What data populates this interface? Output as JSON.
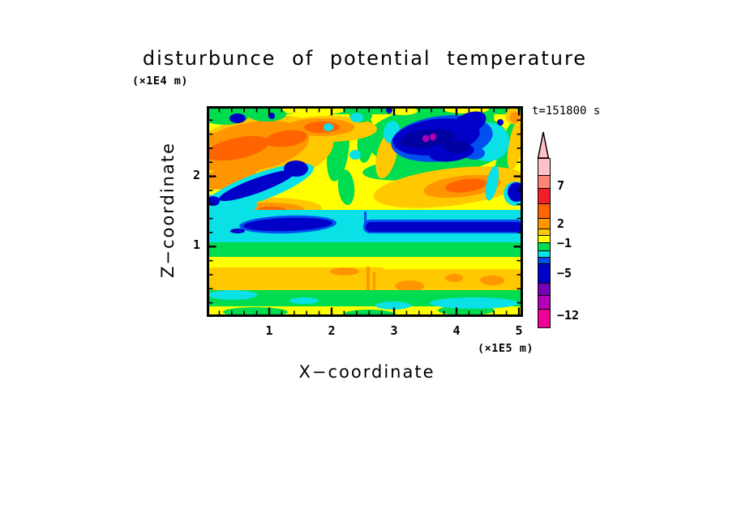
{
  "chart_data": {
    "type": "heatmap",
    "title": "disturbunce of potential temperature",
    "time_annotation": "t=151800 s",
    "xlabel": "X−coordinate",
    "x_units": "(×1E5 m)",
    "x_ticks": [
      1,
      2,
      3,
      4,
      5
    ],
    "xlim": [
      0,
      5.05
    ],
    "x_minor_step": 0.2,
    "ylabel": "Z−coordinate",
    "y_units": "(×1E4 m)",
    "y_ticks": [
      1,
      2
    ],
    "ylim": [
      0,
      3.0
    ],
    "y_minor_step": 0.2,
    "grid": false,
    "legend_position": "right",
    "palette": {
      "pale_pink": "#FFC0C8",
      "salmon": "#FF8478",
      "red": "#F51E28",
      "orange_dark": "#FF6400",
      "orange": "#FF9600",
      "gold": "#FFC800",
      "yellow": "#FFFF00",
      "green": "#00DC50",
      "cyan": "#0AE1E6",
      "blue": "#0050F0",
      "navy": "#0000C8",
      "navy_dark": "#0000A0",
      "purple": "#7800B4",
      "magenta_purple": "#B400B4",
      "magenta": "#F00096",
      "frame": "#000000"
    },
    "colorbar": {
      "arrow": "up",
      "labeled_levels": [
        7,
        2,
        -1,
        -5,
        -12
      ],
      "cells_top_to_bottom": [
        {
          "color": "pale_pink",
          "h": 20
        },
        {
          "color": "salmon",
          "h": 15,
          "label": "7"
        },
        {
          "color": "red",
          "h": 18
        },
        {
          "color": "orange_dark",
          "h": 17
        },
        {
          "color": "orange",
          "h": 12,
          "label": "2"
        },
        {
          "color": "gold",
          "h": 7
        },
        {
          "color": "yellow",
          "h": 8
        },
        {
          "color": "green",
          "h": 9,
          "label": "−1"
        },
        {
          "color": "cyan",
          "h": 7
        },
        {
          "color": "blue",
          "h": 7
        },
        {
          "color": "navy",
          "h": 23,
          "label": "−5"
        },
        {
          "color": "purple",
          "h": 14
        },
        {
          "color": "magenta_purple",
          "h": 16
        },
        {
          "color": "magenta",
          "h": 22,
          "label": "−12"
        }
      ]
    },
    "features": [
      {
        "desc": "strong negative anomaly (navy, < -5) blob with two small magenta spots",
        "x_1e5m": [
          2.9,
          4.5
        ],
        "z_1e4m": [
          2.35,
          2.95
        ]
      },
      {
        "desc": "diagonal navy streak with cyan halo",
        "x_1e5m": [
          0.2,
          1.5
        ],
        "z_1e4m": [
          1.85,
          2.25
        ]
      },
      {
        "desc": "thin navy stripe inside cyan layer",
        "x_1e5m": [
          2.5,
          5.05
        ],
        "z_1e4m": [
          1.45,
          1.6
        ]
      },
      {
        "desc": "cyan (-2..-1) layer across full width",
        "x_1e5m": [
          0,
          5.05
        ],
        "z_1e4m": [
          1.3,
          1.7
        ]
      },
      {
        "desc": "warm gold band (1..2) across full width",
        "x_1e5m": [
          0,
          5.05
        ],
        "z_1e4m": [
          0.45,
          1.05
        ]
      },
      {
        "desc": "orange/red positive region",
        "x_1e5m": [
          0.0,
          1.8
        ],
        "z_1e4m": [
          2.2,
          2.9
        ]
      },
      {
        "desc": "orange core with small navy spot at right edge",
        "x_1e5m": [
          3.6,
          5.0
        ],
        "z_1e4m": [
          1.75,
          2.1
        ]
      },
      {
        "desc": "green band below cyan layer and near bottom",
        "x_1e5m": [
          0,
          5.05
        ],
        "z_1e4m": [
          0.1,
          0.35
        ]
      },
      {
        "desc": "vertical seam / discontinuity in field",
        "x_1e5m": [
          2.55,
          2.6
        ],
        "z_1e4m": [
          0.0,
          1.7
        ]
      }
    ]
  }
}
